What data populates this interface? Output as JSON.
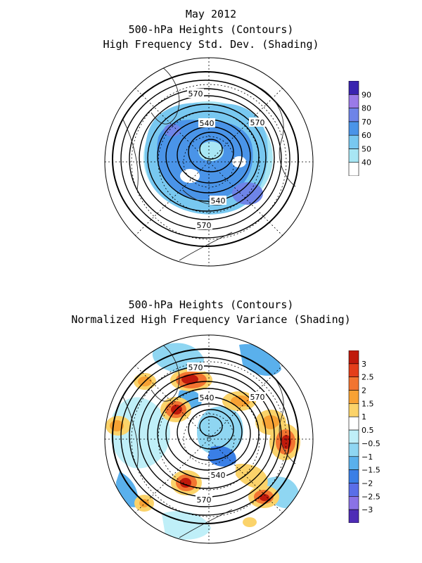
{
  "top_panel": {
    "title_lines": [
      "May 2012",
      "500-hPa Heights (Contours)",
      "High Frequency Std. Dev. (Shading)"
    ],
    "contour_labels": [
      "570",
      "540",
      "570",
      "540",
      "570"
    ],
    "colorbar": {
      "colors": [
        "#ffffff",
        "#a8e6f4",
        "#78c8f0",
        "#4a94e8",
        "#6e84e8",
        "#9a7ae8",
        "#3a24b0"
      ],
      "labels": [
        "40",
        "50",
        "60",
        "70",
        "80",
        "90"
      ]
    }
  },
  "bottom_panel": {
    "title_lines": [
      "500-hPa Heights (Contours)",
      "Normalized High Frequency Variance (Shading)"
    ],
    "contour_labels": [
      "570",
      "540",
      "570",
      "540",
      "570"
    ],
    "colorbar": {
      "colors": [
        "#c01a0c",
        "#e43e1a",
        "#f27430",
        "#f8a234",
        "#fbd36a",
        "#ffffff",
        "#bfeff8",
        "#8fd6f2",
        "#5ab0ec",
        "#3a7fe6",
        "#5a6ee8",
        "#8a72e6",
        "#4e2cb6"
      ],
      "labels": [
        "3",
        "2.5",
        "2",
        "1.5",
        "1",
        "0.5",
        "−0.5",
        "−1",
        "−1.5",
        "−2",
        "−2.5",
        "−3"
      ]
    }
  }
}
